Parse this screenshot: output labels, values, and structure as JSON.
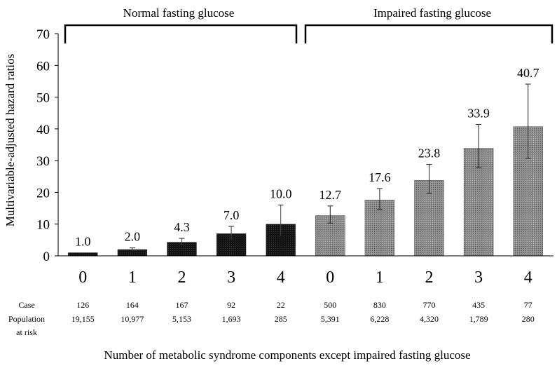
{
  "chart_data": {
    "type": "bar",
    "title": "",
    "ylabel": "Multivariable-adjusted hazard ratios",
    "xlabel": "Number of metabolic syndrome components except impaired fasting glucose",
    "ylim": [
      0,
      70
    ],
    "yticks": [
      "0",
      "10",
      "20",
      "30",
      "40",
      "50",
      "60",
      "70"
    ],
    "grid": false,
    "groups": [
      {
        "name": "Normal fasting glucose",
        "color": "#1a1a1a",
        "categories": [
          "0",
          "1",
          "2",
          "3",
          "4"
        ],
        "values": [
          1.0,
          2.0,
          4.3,
          7.0,
          10.0
        ],
        "labels": [
          "1.0",
          "2.0",
          "4.3",
          "7.0",
          "10.0"
        ],
        "ci_lower": [
          1.0,
          1.6,
          3.4,
          5.3,
          6.3
        ],
        "ci_upper": [
          1.0,
          2.5,
          5.5,
          9.3,
          16.0
        ],
        "cases": [
          "126",
          "164",
          "167",
          "92",
          "22"
        ],
        "population": [
          "19,155",
          "10,977",
          "5,153",
          "1,693",
          "285"
        ]
      },
      {
        "name": "Impaired fasting glucose",
        "color": "#8a8a8a",
        "categories": [
          "0",
          "1",
          "2",
          "3",
          "4"
        ],
        "values": [
          12.7,
          17.6,
          23.8,
          33.9,
          40.7
        ],
        "labels": [
          "12.7",
          "17.6",
          "23.8",
          "33.9",
          "40.7"
        ],
        "ci_lower": [
          10.3,
          14.6,
          19.7,
          27.8,
          30.7
        ],
        "ci_upper": [
          15.7,
          21.2,
          28.8,
          41.4,
          54.1
        ],
        "cases": [
          "500",
          "830",
          "770",
          "435",
          "77"
        ],
        "population": [
          "5,391",
          "6,228",
          "4,320",
          "1,789",
          "280"
        ]
      }
    ],
    "table_row_labels": {
      "case": "Case",
      "population_line1": "Population",
      "population_line2": "at risk"
    }
  }
}
